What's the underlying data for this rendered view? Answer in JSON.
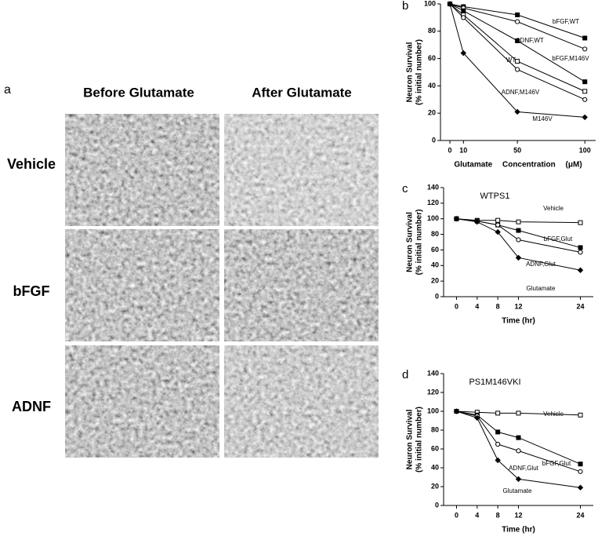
{
  "panel_a": {
    "label": "a",
    "columns": [
      "Before Glutamate",
      "After Glutamate"
    ],
    "rows": [
      "Vehicle",
      "bFGF",
      "ADNF"
    ]
  },
  "chart_data": [
    {
      "type": "line",
      "panel": "b",
      "xlabel": "Glutamate Concentration (μM)",
      "ylabel": [
        "Neuron Survival",
        "(% initial number)"
      ],
      "x": [
        0,
        10,
        50,
        100
      ],
      "xlim": [
        -7,
        108
      ],
      "xticks": [
        0,
        10,
        50,
        100
      ],
      "ylim": [
        0,
        100
      ],
      "yticks": [
        0,
        20,
        40,
        60,
        80,
        100
      ],
      "series": [
        {
          "name": "bFGF,WT",
          "color": "#000000",
          "marker": "square",
          "values": [
            100,
            98,
            92,
            75
          ]
        },
        {
          "name": "ADNF,WT",
          "color": "#000000",
          "marker": "circle-open",
          "values": [
            100,
            97,
            87,
            67
          ]
        },
        {
          "name": "bFGF,M146V",
          "color": "#000000",
          "marker": "square",
          "values": [
            100,
            95,
            73,
            43
          ]
        },
        {
          "name": "WT",
          "color": "#000000",
          "marker": "square-open",
          "values": [
            100,
            92,
            58,
            36
          ]
        },
        {
          "name": "ADNF,M146V",
          "color": "#000000",
          "marker": "circle-open",
          "values": [
            100,
            90,
            52,
            30
          ]
        },
        {
          "name": "M146V",
          "color": "#000000",
          "marker": "diamond",
          "values": [
            100,
            64,
            21,
            17
          ]
        }
      ]
    },
    {
      "type": "line",
      "panel": "c",
      "title": "WTPS1",
      "xlabel": "Time (hr)",
      "ylabel": [
        "Neuron Survival",
        "(% initial number)"
      ],
      "x": [
        0,
        4,
        8,
        12,
        24
      ],
      "xlim": [
        -2.5,
        26.5
      ],
      "xticks": [
        0,
        4,
        8,
        12,
        24
      ],
      "ylim": [
        0,
        140
      ],
      "yticks": [
        0,
        20,
        40,
        60,
        80,
        100,
        120,
        140
      ],
      "series": [
        {
          "name": "Vehicle",
          "color": "#000000",
          "marker": "square-open",
          "values": [
            100,
            98,
            98,
            96,
            95
          ]
        },
        {
          "name": "bFGF,Glut",
          "color": "#000000",
          "marker": "square",
          "values": [
            100,
            97,
            92,
            85,
            63
          ]
        },
        {
          "name": "ADNF,Glut",
          "color": "#000000",
          "marker": "circle-open",
          "values": [
            100,
            97,
            92,
            73,
            57
          ]
        },
        {
          "name": "Glutamate",
          "color": "#000000",
          "marker": "diamond",
          "values": [
            100,
            96,
            83,
            50,
            34
          ]
        }
      ]
    },
    {
      "type": "line",
      "panel": "d",
      "title": "PS1M146VKI",
      "xlabel": "Time (hr)",
      "ylabel": [
        "Neuron Survival",
        "(% initial number)"
      ],
      "x": [
        0,
        4,
        8,
        12,
        24
      ],
      "xlim": [
        -2.5,
        26.5
      ],
      "xticks": [
        0,
        4,
        8,
        12,
        24
      ],
      "ylim": [
        0,
        140
      ],
      "yticks": [
        0,
        20,
        40,
        60,
        80,
        100,
        120,
        140
      ],
      "series": [
        {
          "name": "Vehicle",
          "color": "#000000",
          "marker": "square-open",
          "values": [
            100,
            99,
            98,
            98,
            96
          ]
        },
        {
          "name": "bFGF,Glut",
          "color": "#000000",
          "marker": "square",
          "values": [
            100,
            96,
            78,
            72,
            44
          ]
        },
        {
          "name": "ADNF,Glut",
          "color": "#000000",
          "marker": "circle-open",
          "values": [
            100,
            95,
            65,
            58,
            36
          ]
        },
        {
          "name": "Glutamate",
          "color": "#000000",
          "marker": "diamond",
          "values": [
            100,
            93,
            48,
            28,
            19
          ]
        }
      ]
    }
  ]
}
